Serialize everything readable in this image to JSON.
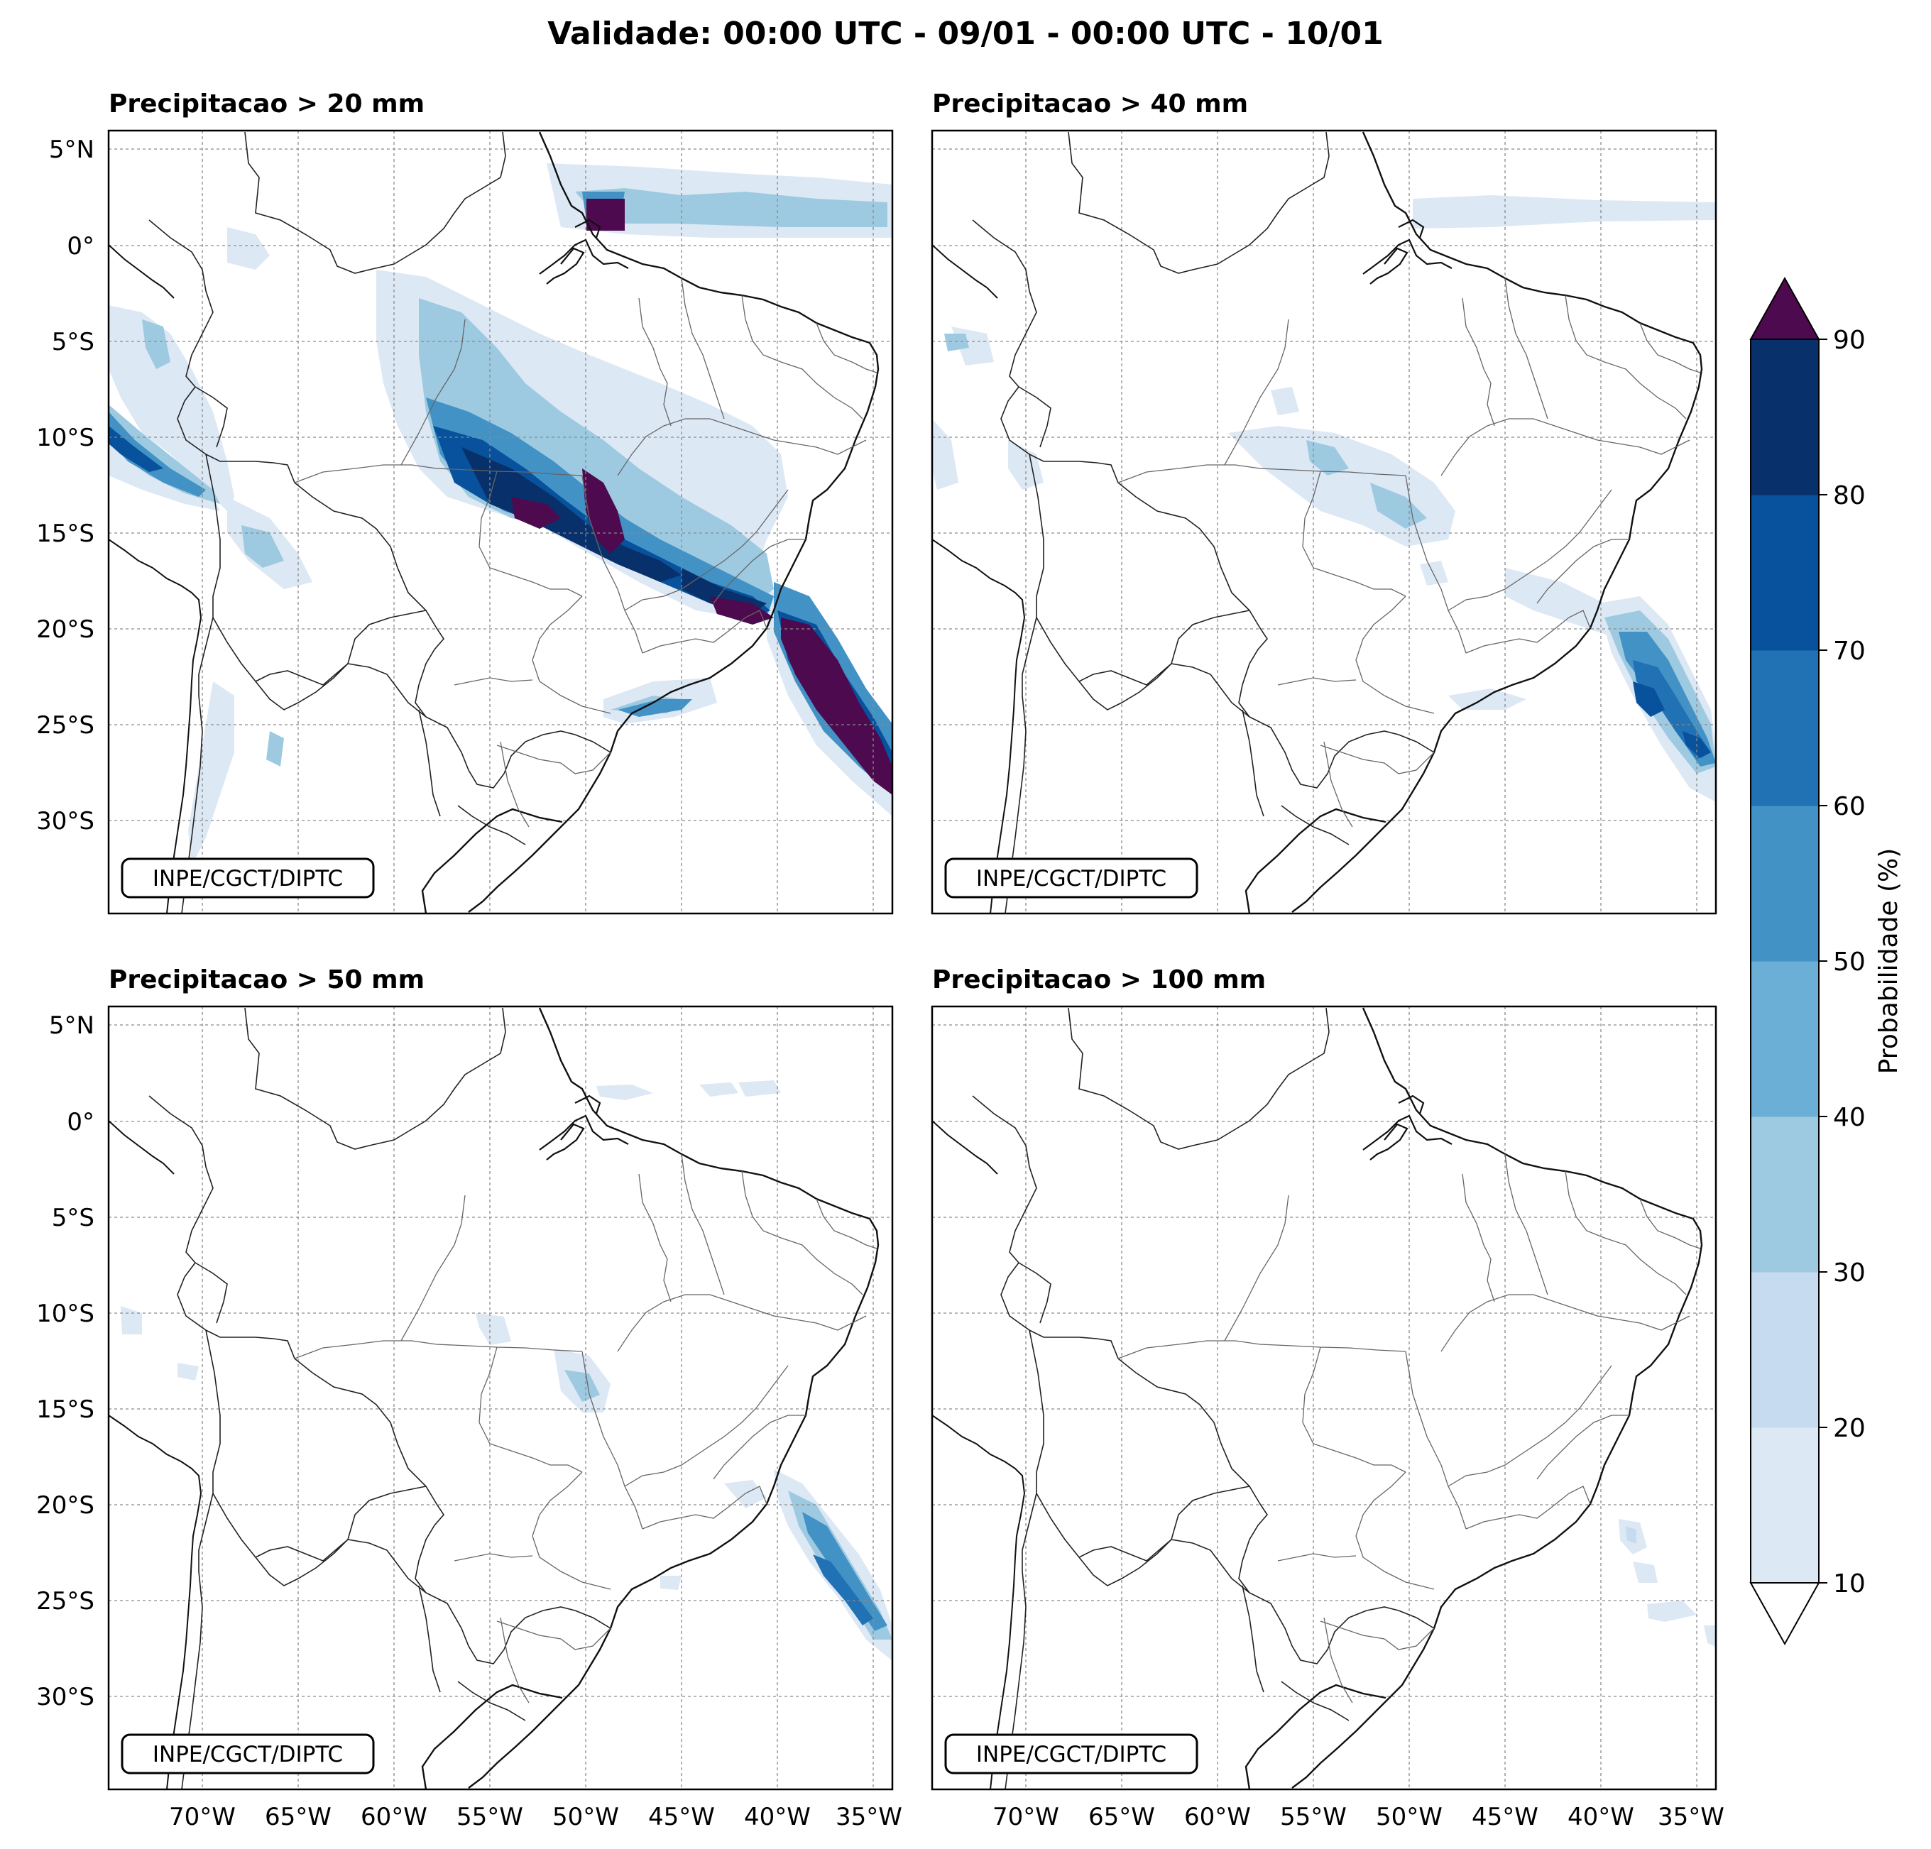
{
  "title": "Validade: 00:00 UTC - 09/01 - 00:00 UTC - 10/01",
  "panels": [
    {
      "title": "Precipitacao > 20 mm",
      "credit": "INPE/CGCT/DIPTC"
    },
    {
      "title": "Precipitacao > 40 mm",
      "credit": "INPE/CGCT/DIPTC"
    },
    {
      "title": "Precipitacao > 50 mm",
      "credit": "INPE/CGCT/DIPTC"
    },
    {
      "title": "Precipitacao > 100 mm",
      "credit": "INPE/CGCT/DIPTC"
    }
  ],
  "axes": {
    "lat_labels": [
      "5°N",
      "0°",
      "5°S",
      "10°S",
      "15°S",
      "20°S",
      "25°S",
      "30°S"
    ],
    "lon_labels": [
      "70°W",
      "65°W",
      "60°W",
      "55°W",
      "50°W",
      "45°W",
      "40°W",
      "35°W"
    ]
  },
  "colorbar": {
    "label": "Probabilidade (%)",
    "ticks": [
      "10",
      "20",
      "30",
      "40",
      "50",
      "60",
      "70",
      "80",
      "90"
    ],
    "colors": [
      "#dde8f5",
      "#c6dbef",
      "#9ecae1",
      "#6baed6",
      "#4292c6",
      "#2171b5",
      "#08519c",
      "#08306b"
    ],
    "over_color": "#4d0a4e",
    "under_color": "#ffffff"
  }
}
